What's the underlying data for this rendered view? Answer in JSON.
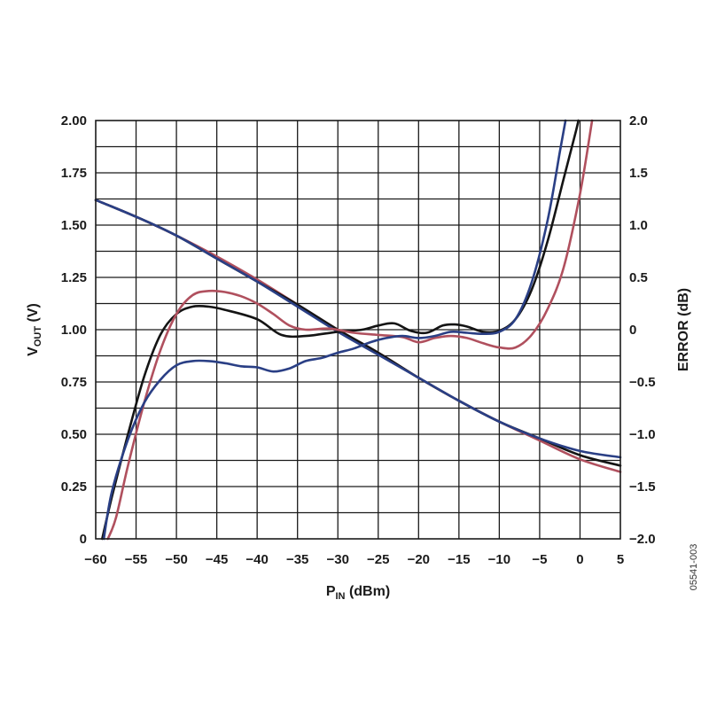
{
  "chart_data": {
    "type": "line",
    "xlabel": {
      "main": "P",
      "sub": "IN",
      "rest": " (dBm)"
    },
    "ylabel_left": {
      "main": "V",
      "sub": "OUT",
      "rest": " (V)"
    },
    "ylabel_right": "ERROR (dB)",
    "figure_id": "05541-003",
    "grid": true,
    "xlim": [
      -60,
      5
    ],
    "ylim_left": [
      0,
      2.0
    ],
    "ylim_right": [
      -2.0,
      2.0
    ],
    "x_ticks": [
      "−60",
      "−55",
      "−50",
      "−45",
      "−40",
      "−35",
      "−30",
      "−25",
      "−20",
      "−15",
      "−10",
      "−5",
      "0",
      "5"
    ],
    "y_left_ticks": [
      "0",
      "0.25",
      "0.50",
      "0.75",
      "1.00",
      "1.25",
      "1.50",
      "1.75",
      "2.00"
    ],
    "y_right_ticks": [
      "−2.0",
      "−1.5",
      "−1.0",
      "−0.5",
      "0",
      "0.5",
      "1.0",
      "1.5",
      "2.0"
    ],
    "colors": {
      "black": "#141414",
      "red": "#b0505e",
      "blue": "#2a3f85"
    },
    "vout_series": [
      {
        "color": "red",
        "axis": "left",
        "x": [
          -60,
          -55,
          -50,
          -45,
          -40,
          -35,
          -30,
          -25,
          -20,
          -15,
          -10,
          -5,
          0,
          5
        ],
        "y": [
          1.62,
          1.54,
          1.45,
          1.35,
          1.24,
          1.12,
          1.0,
          0.89,
          0.77,
          0.66,
          0.56,
          0.47,
          0.38,
          0.32
        ]
      },
      {
        "color": "black",
        "axis": "left",
        "x": [
          -60,
          -55,
          -50,
          -45,
          -40,
          -35,
          -30,
          -25,
          -20,
          -15,
          -10,
          -5,
          0,
          5
        ],
        "y": [
          1.62,
          1.54,
          1.45,
          1.34,
          1.23,
          1.12,
          1.0,
          0.89,
          0.77,
          0.66,
          0.56,
          0.48,
          0.4,
          0.35
        ]
      },
      {
        "color": "blue",
        "axis": "left",
        "x": [
          -60,
          -55,
          -50,
          -45,
          -40,
          -35,
          -30,
          -25,
          -20,
          -15,
          -10,
          -5,
          0,
          5
        ],
        "y": [
          1.62,
          1.54,
          1.45,
          1.34,
          1.23,
          1.11,
          0.99,
          0.88,
          0.77,
          0.66,
          0.56,
          0.48,
          0.42,
          0.39
        ]
      }
    ],
    "error_series": [
      {
        "color": "black",
        "axis": "right",
        "x": [
          -59.2,
          -58,
          -56,
          -54,
          -52,
          -50,
          -48,
          -46,
          -44,
          -40,
          -37,
          -34,
          -30,
          -27,
          -25,
          -23,
          -21,
          -19,
          -17,
          -15.5,
          -14,
          -12,
          -10,
          -8,
          -6,
          -4,
          -2,
          -0.5,
          -0.2
        ],
        "y": [
          -2.0,
          -1.6,
          -1.0,
          -0.45,
          -0.05,
          0.15,
          0.22,
          0.22,
          0.19,
          0.1,
          -0.05,
          -0.06,
          -0.02,
          0.0,
          0.04,
          0.06,
          -0.01,
          -0.03,
          0.04,
          0.05,
          0.03,
          -0.02,
          -0.01,
          0.1,
          0.38,
          0.85,
          1.45,
          1.9,
          2.0
        ]
      },
      {
        "color": "red",
        "axis": "right",
        "x": [
          -58.5,
          -57.5,
          -56,
          -54,
          -52,
          -50,
          -48,
          -46,
          -44,
          -42,
          -40,
          -38,
          -36,
          -34,
          -31,
          -28,
          -25,
          -22,
          -20,
          -18,
          -16,
          -14,
          -12,
          -10,
          -8,
          -6,
          -4,
          -2,
          0,
          1.5
        ],
        "y": [
          -2.0,
          -1.8,
          -1.3,
          -0.7,
          -0.2,
          0.15,
          0.33,
          0.37,
          0.36,
          0.32,
          0.25,
          0.15,
          0.04,
          0.0,
          0.01,
          -0.03,
          -0.05,
          -0.07,
          -0.12,
          -0.08,
          -0.06,
          -0.08,
          -0.13,
          -0.17,
          -0.17,
          -0.05,
          0.2,
          0.6,
          1.3,
          2.0
        ]
      },
      {
        "color": "blue",
        "axis": "right",
        "x": [
          -59,
          -58,
          -56,
          -54,
          -52,
          -50,
          -48,
          -46,
          -44,
          -42,
          -40,
          -38,
          -36,
          -34,
          -32,
          -30,
          -28,
          -26,
          -24,
          -22,
          -20,
          -18,
          -16,
          -14,
          -12,
          -10,
          -8,
          -6,
          -4,
          -2.5,
          -1.8
        ],
        "y": [
          -2.0,
          -1.55,
          -1.05,
          -0.7,
          -0.48,
          -0.34,
          -0.3,
          -0.3,
          -0.32,
          -0.35,
          -0.36,
          -0.4,
          -0.37,
          -0.3,
          -0.27,
          -0.22,
          -0.18,
          -0.12,
          -0.08,
          -0.06,
          -0.08,
          -0.06,
          -0.02,
          -0.03,
          -0.04,
          -0.02,
          0.1,
          0.45,
          1.05,
          1.7,
          2.0
        ]
      }
    ]
  }
}
